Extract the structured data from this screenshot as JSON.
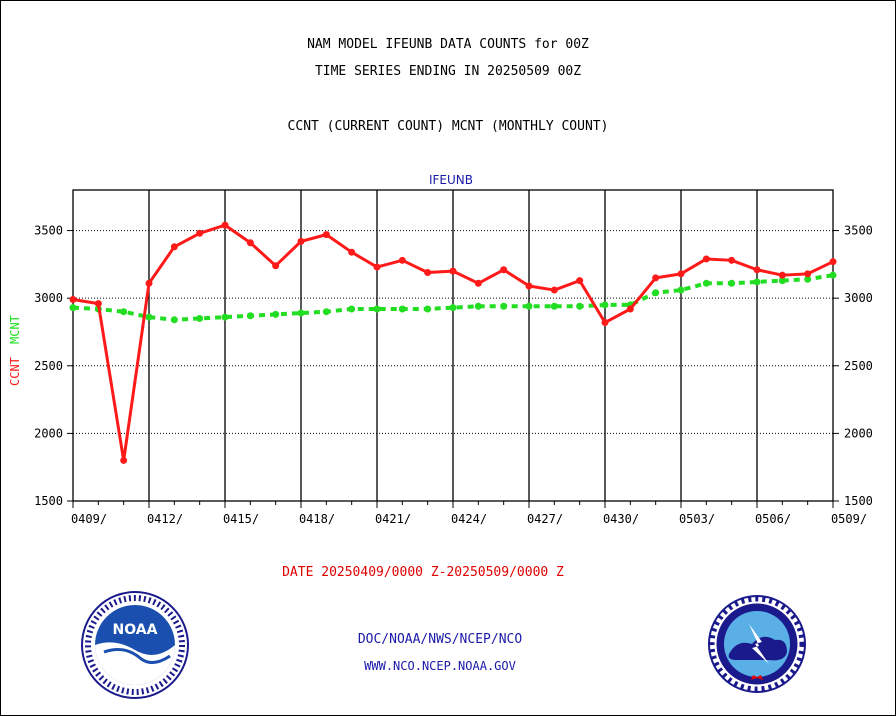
{
  "chart_data": {
    "type": "line",
    "title": "NAM MODEL IFEUNB DATA COUNTS for 00Z",
    "subtitle": "TIME SERIES ENDING IN 20250509 00Z",
    "description_line": "CCNT (CURRENT COUNT) MCNT (MONTHLY COUNT)",
    "panel_label": "IFEUNB",
    "xlabel": "DATE 20250409/0000 Z-20250509/0000 Z",
    "ylabel_ccnt": "CCNT",
    "ylabel_mcnt": "MCNT",
    "ylim": [
      1500,
      3800
    ],
    "yticks": [
      1500,
      2000,
      2500,
      3000,
      3500
    ],
    "x_tick_labels": [
      "0409/",
      "0412/",
      "0415/",
      "0418/",
      "0421/",
      "0424/",
      "0427/",
      "0430/",
      "0503/",
      "0506/",
      "0509/"
    ],
    "x_days_total": 30,
    "grid": true,
    "series": [
      {
        "name": "CCNT",
        "color": "#ff1a1a",
        "values": [
          2990,
          2960,
          1800,
          3110,
          3380,
          3480,
          3540,
          3410,
          3240,
          3420,
          3470,
          3340,
          3230,
          3280,
          3190,
          3200,
          3110,
          3210,
          3090,
          3060,
          3130,
          2820,
          2920,
          3150,
          3180,
          3290,
          3280,
          3210,
          3170,
          3180,
          3270
        ]
      },
      {
        "name": "MCNT",
        "color": "#22dd22",
        "values": [
          2930,
          2920,
          2900,
          2860,
          2840,
          2850,
          2860,
          2870,
          2880,
          2890,
          2900,
          2920,
          2920,
          2920,
          2920,
          2930,
          2940,
          2940,
          2940,
          2940,
          2940,
          2950,
          2950,
          3040,
          3060,
          3110,
          3110,
          3120,
          3130,
          3140,
          3170
        ]
      }
    ]
  },
  "footer": {
    "link1": "DOC/NOAA/NWS/NCEP/NCO",
    "link2": "WWW.NCO.NCEP.NOAA.GOV"
  },
  "logos": {
    "noaa_text": "NOAA"
  }
}
